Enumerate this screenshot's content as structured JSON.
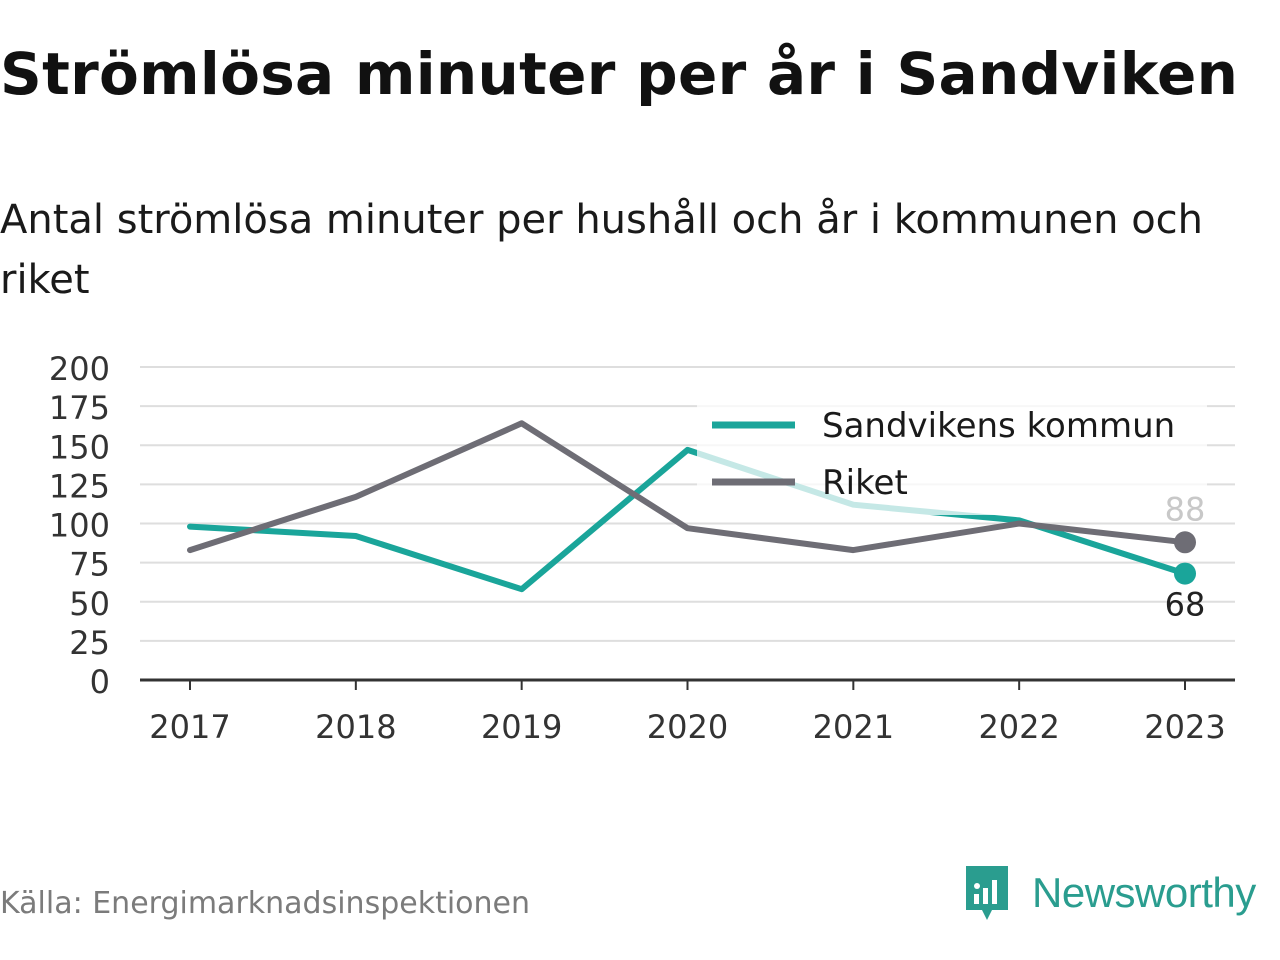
{
  "title": "Strömlösa minuter per år i Sandviken",
  "subtitle": "Antal strömlösa minuter per hushåll och år i kommunen och riket",
  "source": "Källa: Energimarknadsinspektionen",
  "brand": {
    "name": "Newsworthy",
    "icon": "newsworthy-logo-icon",
    "color": "#2a9d8f"
  },
  "chart_data": {
    "type": "line",
    "title": "Strömlösa minuter per år i Sandviken",
    "subtitle": "Antal strömlösa minuter per hushåll och år i kommunen och riket",
    "x": [
      "2017",
      "2018",
      "2019",
      "2020",
      "2021",
      "2022",
      "2023"
    ],
    "ylim": [
      0,
      200
    ],
    "yticks": [
      0,
      25,
      50,
      75,
      100,
      125,
      150,
      175,
      200
    ],
    "grid": true,
    "legend": "top-right",
    "series": [
      {
        "name": "Sandvikens kommun",
        "color": "#1aa59a",
        "values": [
          98,
          92,
          58,
          147,
          112,
          102,
          68
        ],
        "end_label": "68"
      },
      {
        "name": "Riket",
        "color": "#6e6d75",
        "values": [
          83,
          117,
          164,
          97,
          83,
          100,
          88
        ],
        "end_label": "88"
      }
    ]
  }
}
